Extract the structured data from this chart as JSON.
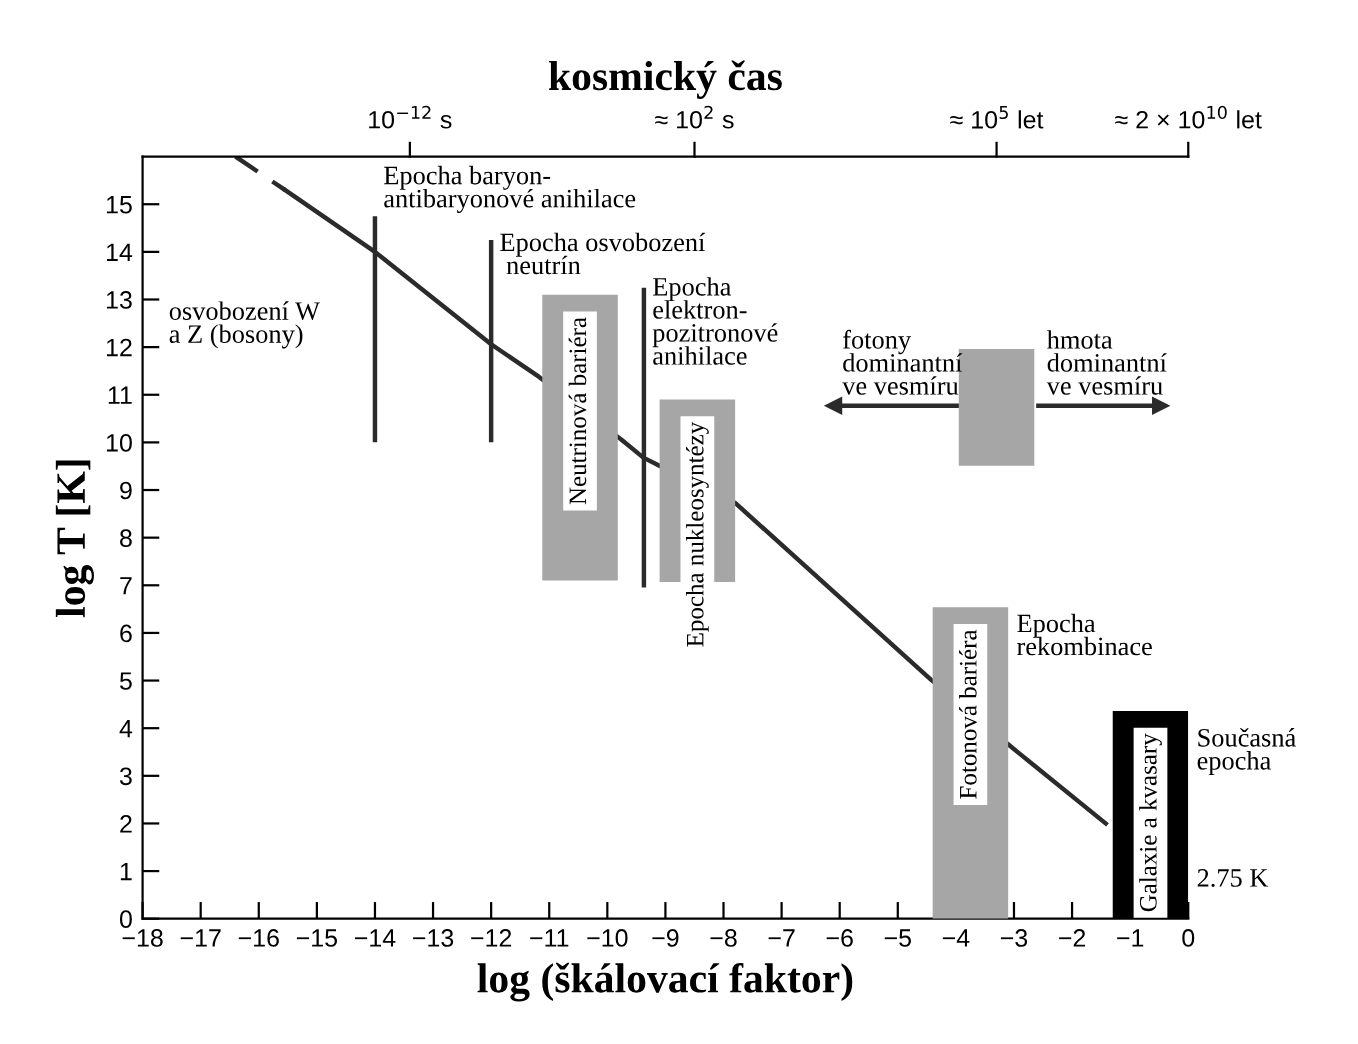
{
  "chart_data": {
    "type": "line",
    "x2label": "kosmický čas",
    "xlabel": "log (škálovací faktor)",
    "ylabel": "log T [K]",
    "xlim": [
      -18,
      0
    ],
    "ylim": [
      0,
      16
    ],
    "xticks": [
      {
        "value": -18,
        "label": "−18"
      },
      {
        "value": -17,
        "label": "−17"
      },
      {
        "value": -16,
        "label": "−16"
      },
      {
        "value": -15,
        "label": "−15"
      },
      {
        "value": -14,
        "label": "−14"
      },
      {
        "value": -13,
        "label": "−13"
      },
      {
        "value": -12,
        "label": "−12"
      },
      {
        "value": -11,
        "label": "−11"
      },
      {
        "value": -10,
        "label": "−10"
      },
      {
        "value": -9,
        "label": "−9"
      },
      {
        "value": -8,
        "label": "−8"
      },
      {
        "value": -7,
        "label": "−7"
      },
      {
        "value": -6,
        "label": "−6"
      },
      {
        "value": -5,
        "label": "−5"
      },
      {
        "value": -4,
        "label": "−4"
      },
      {
        "value": -3,
        "label": "−3"
      },
      {
        "value": -2,
        "label": "−2"
      },
      {
        "value": -1,
        "label": "−1"
      },
      0
    ],
    "yticks": [
      0,
      1,
      2,
      3,
      4,
      5,
      6,
      7,
      8,
      9,
      10,
      11,
      12,
      13,
      14,
      15
    ],
    "grid": false,
    "legend": false,
    "series": [
      {
        "color": "#2b2b2b",
        "x": [
          -15.55,
          -14,
          -12,
          -11.18,
          -9.75,
          -9.38,
          -9.12,
          -7.79,
          -4.43,
          -3.07,
          -1.42
        ],
        "values": [
          15.3,
          14.0,
          12.06,
          11.38,
          10.05,
          9.68,
          9.52,
          8.72,
          5.02,
          3.63,
          2.0
        ]
      },
      {
        "type": "line",
        "color": "#2b2b2b",
        "line_style": "dashed",
        "x": [
          -16.4,
          -15.55
        ],
        "values": [
          16.0,
          15.3
        ]
      },
      {
        "type": "line",
        "color": "#2b2b2b",
        "x": [
          -14,
          -14
        ],
        "values": [
          10.05,
          14.7
        ]
      },
      {
        "type": "line",
        "color": "#2b2b2b",
        "x": [
          -12,
          -12
        ],
        "values": [
          10.05,
          14.2
        ]
      },
      {
        "type": "line",
        "color": "#2b2b2b",
        "x": [
          -9.37,
          -9.37
        ],
        "values": [
          7.0,
          13.2
        ]
      },
      {
        "type": "line",
        "color": "#2b2b2b",
        "marker": "triangle",
        "x": [
          -3.85,
          -6.1
        ],
        "values": [
          10.77,
          10.77
        ]
      },
      {
        "type": "line",
        "color": "#2b2b2b",
        "marker": "triangle",
        "x": [
          -2.58,
          -0.48
        ],
        "values": [
          10.77,
          10.77
        ]
      },
      {
        "type": "bar",
        "name": "Neutrinová bariéra",
        "color": "#a6a6a6",
        "x": [
          -10.47
        ],
        "base": [
          7.1
        ],
        "values": [
          6.0
        ]
      },
      {
        "type": "bar",
        "name": "Epocha nukleosyntézy",
        "color": "#a6a6a6",
        "x": [
          -8.45
        ],
        "base": [
          7.07
        ],
        "values": [
          3.83
        ]
      },
      {
        "type": "bar",
        "name": "Fotonová bariéra",
        "color": "#a6a6a6",
        "x": [
          -3.75
        ],
        "base": [
          0
        ],
        "values": [
          6.54
        ]
      },
      {
        "type": "bar",
        "name": "Galaxie a kvasary",
        "color": "#000000",
        "x": [
          -0.65
        ],
        "base": [
          0
        ],
        "values": [
          4.36
        ]
      },
      {
        "type": "bar",
        "color": "#a6a6a6",
        "x": [
          -3.3
        ],
        "base": [
          9.51
        ],
        "values": [
          2.45
        ]
      }
    ],
    "annotations": [
      {
        "text": "Epocha baryon-\nantibaryonové anihilace",
        "x": -14,
        "y": 14.7
      },
      {
        "text": "Epocha osvobození\n neutrín",
        "x": -12,
        "y": 13.3
      },
      "osvobození W\na Z (bosony)",
      "10$^{−12}$ s",
      "≈ 10$^{2}$ s",
      "≈ 10$^{5}$ let",
      "≈ 2 × 10$^{10}$ let",
      {
        "text": "Epocha\nelektron-\npozitronové\nanihilace",
        "x": -9.37,
        "y": 11.4
      },
      {
        "text": "fotony\ndominantní\nve vesmíru",
        "x": -6.1,
        "y": 10.77
      },
      {
        "text": "hmota\ndominantní\nve vesmíru",
        "x": -2.58,
        "y": 10.77
      },
      {
        "text": "Epocha\nrekombinace",
        "x": -3.1,
        "y": 5.3
      },
      {
        "text": "Současná\nepocha",
        "x": 0,
        "y": 2.9
      },
      {
        "text": "2.75 K",
        "x": 0,
        "y": 0.44
      }
    ]
  }
}
